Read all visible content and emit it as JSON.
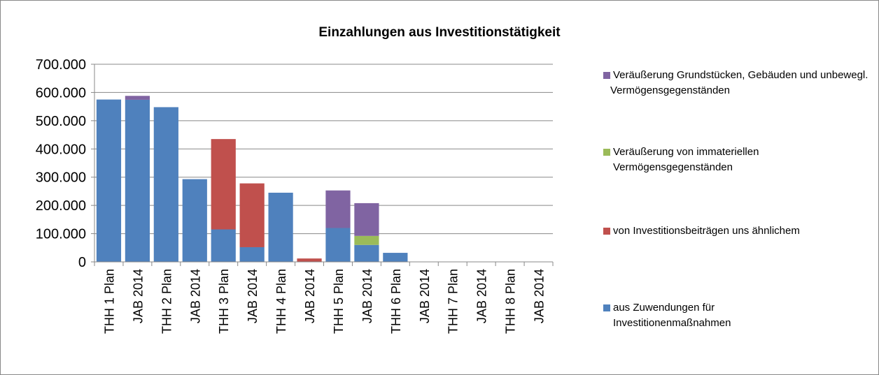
{
  "chart_data": {
    "type": "bar",
    "stacked": true,
    "title": "Einzahlungen aus Investitionstätigkeit",
    "categories": [
      "THH 1 Plan",
      "JAB 2014",
      "THH 2  Plan",
      "JAB 2014",
      "THH 3  Plan",
      "JAB 2014",
      "THH 4  Plan",
      "JAB 2014",
      "THH 5  Plan",
      "JAB 2014",
      "THH 6  Plan",
      "JAB 2014",
      "THH 7  Plan",
      "JAB 2014",
      "THH 8  Plan",
      "JAB 2014"
    ],
    "series": [
      {
        "name": "aus Zuwendungen für Investitionenmaßnahmen",
        "color": "#4f81bd",
        "values": [
          575000,
          574000,
          548000,
          293000,
          115000,
          52000,
          245000,
          0,
          120000,
          60000,
          32000,
          0,
          0,
          0,
          0,
          0
        ]
      },
      {
        "name": "von Investitionsbeiträgen uns ähnlichem",
        "color": "#c0504d",
        "values": [
          0,
          0,
          0,
          0,
          320000,
          226000,
          0,
          12000,
          0,
          0,
          0,
          0,
          0,
          0,
          0,
          0
        ]
      },
      {
        "name": "Veräußerung  von immateriellen Vermögensgegenständen",
        "color": "#9bbb59",
        "values": [
          0,
          0,
          0,
          0,
          0,
          0,
          0,
          0,
          0,
          32000,
          0,
          0,
          0,
          0,
          0,
          0
        ]
      },
      {
        "name": "Veräußerung Grundstücken, Gebäuden und unbewegl. Vermögensgegenständen",
        "color": "#8064a2",
        "values": [
          0,
          14000,
          0,
          0,
          0,
          0,
          0,
          0,
          133000,
          116000,
          0,
          0,
          0,
          0,
          0,
          0
        ]
      }
    ],
    "ylim": [
      0,
      700000
    ],
    "yticks": [
      0,
      {
        "value": 100000,
        "label": "100.000"
      },
      {
        "value": 200000,
        "label": "200.000"
      },
      {
        "value": 300000,
        "label": "300.000"
      },
      {
        "value": 400000,
        "label": "400.000"
      },
      {
        "value": 500000,
        "label": "500.000"
      },
      {
        "value": 600000,
        "label": "600.000"
      },
      {
        "value": 700000,
        "label": "700.000"
      }
    ],
    "grid": true,
    "legend": "right"
  }
}
